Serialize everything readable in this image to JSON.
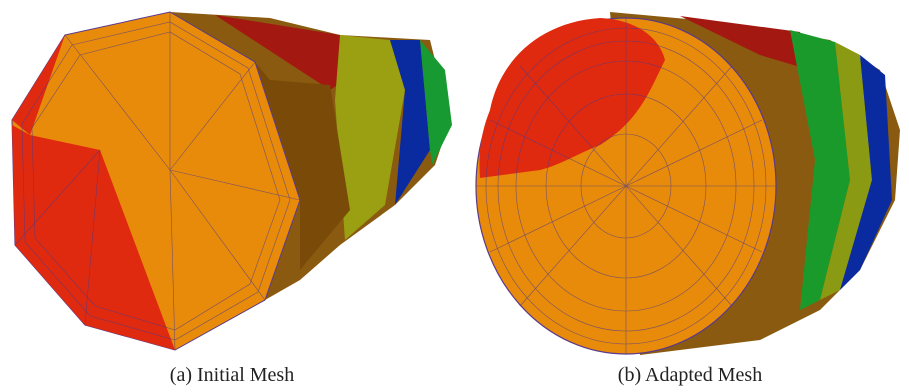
{
  "figure": {
    "panels": [
      {
        "caption": "(a) Initial Mesh"
      },
      {
        "caption": "(b) Adapted Mesh"
      }
    ]
  }
}
